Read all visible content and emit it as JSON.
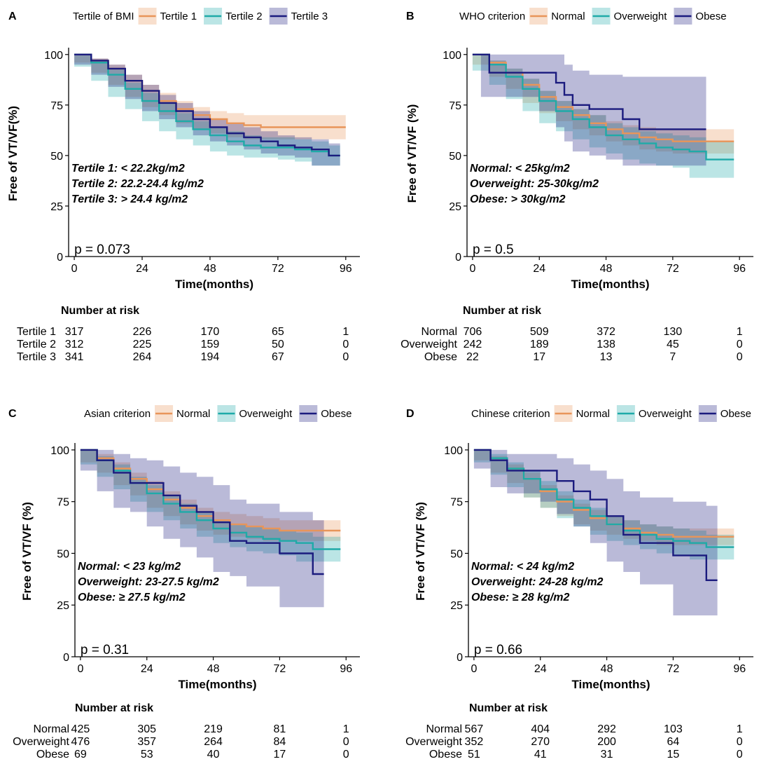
{
  "colors": {
    "group1": "#E8955A",
    "group2": "#1FAAA8",
    "group3": "#1B1B7E"
  },
  "chart_data": [
    {
      "type": "line",
      "subtype": "kaplan-meier",
      "panel": "A",
      "legend_title": "Tertile of BMI",
      "legend_labels": [
        "Tertile 1",
        "Tertile 2",
        "Tertile 3"
      ],
      "ylabel": "Free of  VT/VF(%)",
      "xlabel": "Time(months)",
      "xticks": [
        0,
        24,
        48,
        72,
        96
      ],
      "yticks": [
        0,
        25,
        50,
        75,
        100
      ],
      "xlim": [
        -2,
        101
      ],
      "ylim": [
        0,
        102
      ],
      "p_value": "p = 0.073",
      "annotations": [
        "Tertile 1: < 22.2kg/m2",
        "Tertile 2: 22.2-24.4 kg/m2",
        "Tertile 3: > 24.4 kg/m2"
      ],
      "series": [
        {
          "name": "Tertile 1",
          "x": [
            0,
            6,
            12,
            18,
            24,
            30,
            36,
            42,
            48,
            54,
            60,
            66,
            72,
            96
          ],
          "y": [
            100,
            97,
            93,
            87,
            82,
            77,
            73,
            70,
            68,
            66,
            65,
            64,
            64,
            64
          ],
          "ci_low": [
            100,
            96,
            91,
            85,
            79,
            74,
            70,
            66,
            63,
            61,
            59,
            58,
            58,
            58
          ],
          "ci_high": [
            100,
            98,
            95,
            90,
            85,
            81,
            77,
            74,
            72,
            71,
            70,
            70,
            70,
            70
          ]
        },
        {
          "name": "Tertile 2",
          "x": [
            0,
            6,
            12,
            18,
            24,
            30,
            36,
            42,
            48,
            54,
            60,
            66,
            72,
            78,
            84,
            90,
            94
          ],
          "y": [
            100,
            96,
            90,
            83,
            77,
            72,
            67,
            63,
            60,
            57,
            55,
            54,
            54,
            53,
            52,
            50,
            50
          ],
          "ci_low": [
            100,
            94,
            87,
            79,
            73,
            67,
            62,
            58,
            55,
            52,
            50,
            49,
            49,
            48,
            47,
            45,
            45
          ],
          "ci_high": [
            100,
            97,
            93,
            86,
            81,
            76,
            71,
            67,
            64,
            62,
            60,
            59,
            59,
            58,
            57,
            55,
            55
          ]
        },
        {
          "name": "Tertile 3",
          "x": [
            0,
            6,
            12,
            18,
            24,
            30,
            36,
            42,
            48,
            54,
            60,
            66,
            72,
            78,
            84,
            90,
            94
          ],
          "y": [
            100,
            97,
            93,
            87,
            82,
            76,
            72,
            68,
            64,
            61,
            59,
            57,
            55,
            54,
            53,
            50,
            50
          ],
          "ci_low": [
            100,
            95,
            90,
            84,
            78,
            72,
            68,
            64,
            60,
            57,
            55,
            53,
            51,
            50,
            49,
            45,
            45
          ],
          "ci_high": [
            100,
            98,
            95,
            90,
            85,
            80,
            76,
            72,
            68,
            66,
            64,
            62,
            60,
            59,
            58,
            56,
            56
          ]
        }
      ],
      "risk_table": {
        "title": "Number at risk",
        "times": [
          0,
          24,
          48,
          72,
          96
        ],
        "rows": [
          {
            "label": "Tertile 1",
            "values": [
              317,
              226,
              170,
              65,
              1
            ]
          },
          {
            "label": "Tertile 2",
            "values": [
              312,
              225,
              159,
              50,
              0
            ]
          },
          {
            "label": "Tertile 3",
            "values": [
              341,
              264,
              194,
              67,
              0
            ]
          }
        ]
      }
    },
    {
      "type": "line",
      "subtype": "kaplan-meier",
      "panel": "B",
      "legend_title": "WHO criterion",
      "legend_labels": [
        "Normal",
        "Overweight",
        "Obese"
      ],
      "ylabel": "Free of VT/VF (%)",
      "xlabel": "Time(months)",
      "xticks": [
        0,
        24,
        48,
        72,
        96
      ],
      "yticks": [
        0,
        25,
        50,
        75,
        100
      ],
      "xlim": [
        -2,
        101
      ],
      "ylim": [
        0,
        102
      ],
      "p_value": "p = 0.5",
      "annotations": [
        "Normal: < 25kg/m2",
        "Overweight: 25-30kg/m2",
        "Obese: > 30kg/m2"
      ],
      "series": [
        {
          "name": "Normal",
          "x": [
            0,
            6,
            12,
            18,
            24,
            30,
            36,
            42,
            48,
            54,
            60,
            66,
            72,
            84,
            94
          ],
          "y": [
            100,
            96,
            91,
            85,
            79,
            74,
            70,
            66,
            63,
            61,
            59,
            58,
            57,
            57,
            57
          ],
          "ci_low": [
            100,
            95,
            89,
            83,
            76,
            71,
            67,
            63,
            60,
            57,
            55,
            53,
            52,
            51,
            51
          ],
          "ci_high": [
            100,
            97,
            93,
            88,
            82,
            77,
            73,
            70,
            67,
            65,
            64,
            63,
            63,
            63,
            63
          ]
        },
        {
          "name": "Overweight",
          "x": [
            0,
            6,
            12,
            18,
            24,
            30,
            36,
            42,
            48,
            54,
            60,
            66,
            72,
            78,
            84,
            94
          ],
          "y": [
            100,
            95,
            89,
            83,
            77,
            72,
            68,
            64,
            60,
            58,
            56,
            54,
            53,
            52,
            48,
            48
          ],
          "ci_low": [
            100,
            92,
            85,
            78,
            72,
            66,
            62,
            58,
            54,
            51,
            48,
            46,
            45,
            44,
            39,
            39
          ],
          "ci_high": [
            100,
            97,
            93,
            88,
            82,
            77,
            73,
            70,
            66,
            64,
            62,
            61,
            60,
            59,
            57,
            57
          ]
        },
        {
          "name": "Obese",
          "x": [
            0,
            3,
            6,
            24,
            30,
            33,
            36,
            42,
            48,
            54,
            60,
            84
          ],
          "y": [
            100,
            100,
            91,
            91,
            86,
            80,
            75,
            73,
            73,
            68,
            63,
            63
          ],
          "ci_low": [
            100,
            100,
            79,
            79,
            72,
            64,
            57,
            52,
            50,
            48,
            45,
            45
          ],
          "ci_high": [
            100,
            100,
            100,
            100,
            100,
            95,
            92,
            90,
            90,
            89,
            89,
            89
          ]
        }
      ],
      "risk_table": {
        "title": "Number at risk",
        "times": [
          0,
          24,
          48,
          72,
          96
        ],
        "rows": [
          {
            "label": "Normal",
            "values": [
              706,
              509,
              372,
              130,
              1
            ]
          },
          {
            "label": "Overweight",
            "values": [
              242,
              189,
              138,
              45,
              0
            ]
          },
          {
            "label": "Obese",
            "values": [
              22,
              17,
              13,
              7,
              0
            ]
          }
        ]
      }
    },
    {
      "type": "line",
      "subtype": "kaplan-meier",
      "panel": "C",
      "legend_title": "Asian criterion",
      "legend_labels": [
        "Normal",
        "Overweight",
        "Obese"
      ],
      "ylabel": "Free of VT/VF (%)",
      "xlabel": "Time(months)",
      "xticks": [
        0,
        24,
        48,
        72,
        96
      ],
      "yticks": [
        0,
        25,
        50,
        75,
        100
      ],
      "xlim": [
        -2,
        101
      ],
      "ylim": [
        0,
        102
      ],
      "p_value": "p = 0.31",
      "annotations": [
        "Normal: < 23 kg/m2",
        "Overweight: 23-27.5 kg/m2",
        "Obese: ≥ 27.5 kg/m2"
      ],
      "series": [
        {
          "name": "Normal",
          "x": [
            0,
            6,
            12,
            18,
            24,
            30,
            36,
            42,
            48,
            54,
            60,
            66,
            72,
            84,
            94
          ],
          "y": [
            100,
            96,
            91,
            86,
            81,
            76,
            72,
            68,
            66,
            64,
            63,
            62,
            61,
            61,
            61
          ],
          "ci_low": [
            100,
            94,
            89,
            83,
            78,
            72,
            68,
            64,
            61,
            59,
            58,
            57,
            56,
            56,
            56
          ],
          "ci_high": [
            100,
            98,
            94,
            89,
            85,
            80,
            76,
            72,
            70,
            69,
            68,
            67,
            66,
            66,
            66
          ]
        },
        {
          "name": "Overweight",
          "x": [
            0,
            6,
            12,
            18,
            24,
            30,
            36,
            42,
            48,
            54,
            60,
            66,
            72,
            78,
            84,
            94
          ],
          "y": [
            100,
            95,
            90,
            84,
            79,
            74,
            70,
            66,
            62,
            60,
            58,
            57,
            56,
            55,
            52,
            52
          ],
          "ci_low": [
            100,
            93,
            87,
            81,
            75,
            70,
            66,
            62,
            58,
            55,
            53,
            51,
            50,
            49,
            46,
            46
          ],
          "ci_high": [
            100,
            97,
            93,
            87,
            83,
            78,
            74,
            70,
            66,
            64,
            63,
            62,
            61,
            60,
            58,
            58
          ]
        },
        {
          "name": "Obese",
          "x": [
            0,
            6,
            12,
            18,
            24,
            30,
            36,
            42,
            48,
            54,
            60,
            72,
            84,
            88
          ],
          "y": [
            100,
            95,
            89,
            84,
            84,
            78,
            73,
            70,
            65,
            56,
            55,
            50,
            40,
            40
          ],
          "ci_low": [
            100,
            90,
            80,
            72,
            70,
            63,
            57,
            53,
            48,
            41,
            39,
            34,
            24,
            24
          ],
          "ci_high": [
            100,
            100,
            98,
            96,
            95,
            92,
            89,
            87,
            83,
            76,
            74,
            70,
            66,
            66
          ]
        }
      ],
      "risk_table": {
        "title": "Number at risk",
        "times": [
          0,
          24,
          48,
          72,
          96
        ],
        "rows": [
          {
            "label": "Normal",
            "values": [
              425,
              305,
              219,
              81,
              1
            ]
          },
          {
            "label": "Overweight",
            "values": [
              476,
              357,
              264,
              84,
              0
            ]
          },
          {
            "label": "Obese",
            "values": [
              69,
              53,
              40,
              17,
              0
            ]
          }
        ]
      }
    },
    {
      "type": "line",
      "subtype": "kaplan-meier",
      "panel": "D",
      "legend_title": "Chinese criterion",
      "legend_labels": [
        "Normal",
        "Overweight",
        "Obese"
      ],
      "ylabel": "Free of VT/VF  (%)",
      "xlabel": "Time(months)",
      "xticks": [
        0,
        24,
        48,
        72,
        96
      ],
      "yticks": [
        0,
        25,
        50,
        75,
        100
      ],
      "xlim": [
        -2,
        101
      ],
      "ylim": [
        0,
        102
      ],
      "p_value": "p = 0.66",
      "annotations": [
        "Normal: < 24 kg/m2",
        "Overweight: 24-28 kg/m2",
        "Obese: ≥ 28 kg/m2"
      ],
      "series": [
        {
          "name": "Normal",
          "x": [
            0,
            6,
            12,
            18,
            24,
            30,
            36,
            42,
            48,
            54,
            60,
            66,
            72,
            84,
            94
          ],
          "y": [
            100,
            96,
            91,
            86,
            80,
            75,
            71,
            67,
            64,
            62,
            60,
            59,
            58,
            58,
            58
          ],
          "ci_low": [
            100,
            95,
            89,
            84,
            77,
            72,
            68,
            64,
            61,
            59,
            57,
            56,
            54,
            54,
            54
          ],
          "ci_high": [
            100,
            97,
            93,
            89,
            83,
            78,
            74,
            71,
            68,
            66,
            64,
            63,
            62,
            62,
            62
          ]
        },
        {
          "name": "Overweight",
          "x": [
            0,
            6,
            12,
            18,
            24,
            30,
            36,
            42,
            48,
            54,
            60,
            66,
            72,
            78,
            84,
            94
          ],
          "y": [
            100,
            96,
            91,
            86,
            81,
            76,
            72,
            68,
            64,
            61,
            59,
            57,
            56,
            55,
            53,
            53
          ],
          "ci_low": [
            100,
            94,
            88,
            82,
            77,
            72,
            67,
            63,
            59,
            56,
            54,
            52,
            50,
            49,
            47,
            47
          ],
          "ci_high": [
            100,
            98,
            94,
            90,
            85,
            80,
            76,
            72,
            68,
            66,
            64,
            63,
            62,
            61,
            59,
            59
          ]
        },
        {
          "name": "Obese",
          "x": [
            0,
            6,
            12,
            24,
            30,
            36,
            42,
            48,
            54,
            60,
            72,
            84,
            88
          ],
          "y": [
            100,
            95,
            90,
            90,
            85,
            80,
            76,
            68,
            59,
            55,
            49,
            37,
            37
          ],
          "ci_low": [
            100,
            91,
            82,
            79,
            75,
            69,
            63,
            55,
            46,
            41,
            35,
            20,
            20
          ],
          "ci_high": [
            100,
            100,
            98,
            98,
            96,
            93,
            90,
            86,
            80,
            77,
            75,
            73,
            73
          ]
        }
      ],
      "risk_table": {
        "title": "Number at risk",
        "times": [
          0,
          24,
          48,
          72,
          96
        ],
        "rows": [
          {
            "label": "Normal",
            "values": [
              567,
              404,
              292,
              103,
              1
            ]
          },
          {
            "label": "Overweight",
            "values": [
              352,
              270,
              200,
              64,
              0
            ]
          },
          {
            "label": "Obese",
            "values": [
              51,
              41,
              31,
              15,
              0
            ]
          }
        ]
      }
    }
  ]
}
